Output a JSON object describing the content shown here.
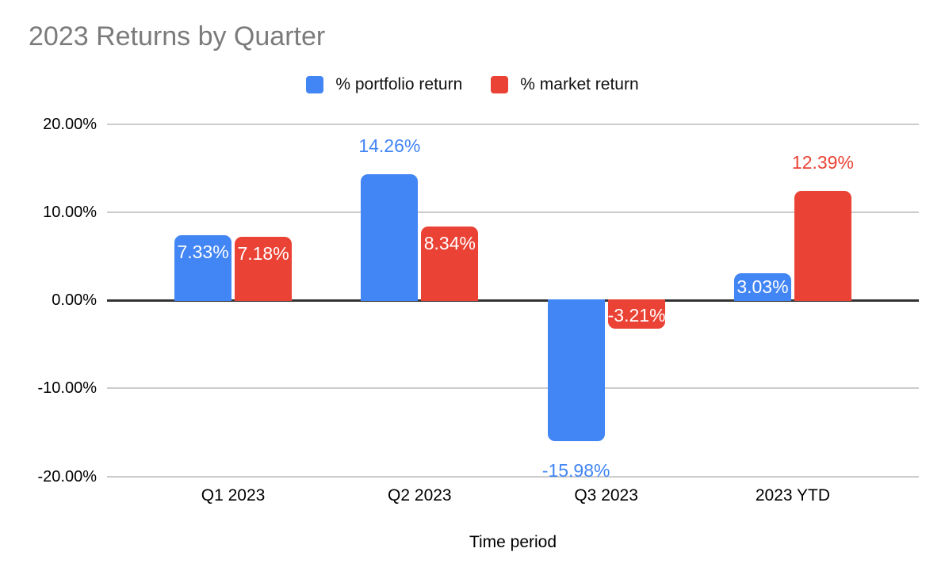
{
  "chart_data": {
    "type": "bar",
    "title": "2023 Returns by Quarter",
    "categories": [
      "Q1 2023",
      "Q2 2023",
      "Q3 2023",
      "2023 YTD"
    ],
    "series": [
      {
        "name": "% portfolio return",
        "color": "#4285F4",
        "values": [
          7.33,
          14.26,
          -15.98,
          3.03
        ],
        "labels": [
          "7.33%",
          "14.26%",
          "-15.98%",
          "3.03%"
        ],
        "label_placement": [
          "inside",
          "outside",
          "outside",
          "inside"
        ]
      },
      {
        "name": "% market return",
        "color": "#EA4335",
        "values": [
          7.18,
          8.34,
          -3.21,
          12.39
        ],
        "labels": [
          "7.18%",
          "8.34%",
          "-3.21%",
          "12.39%"
        ],
        "label_placement": [
          "inside",
          "inside",
          "inside",
          "outside"
        ]
      }
    ],
    "xlabel": "Time period",
    "ylabel": "",
    "ylim": [
      -20,
      20
    ],
    "yticks": [
      "20.00%",
      "10.00%",
      "0.00%",
      "-10.00%",
      "-20.00%"
    ],
    "ytick_values": [
      20,
      10,
      0,
      -10,
      -20
    ],
    "grid": true,
    "legend_position": "top"
  },
  "colors": {
    "background": "#ffffff",
    "title_text": "#7b7b7b",
    "axis_text": "#000000",
    "gridline": "#cccccc",
    "zero_line": "#333333"
  }
}
